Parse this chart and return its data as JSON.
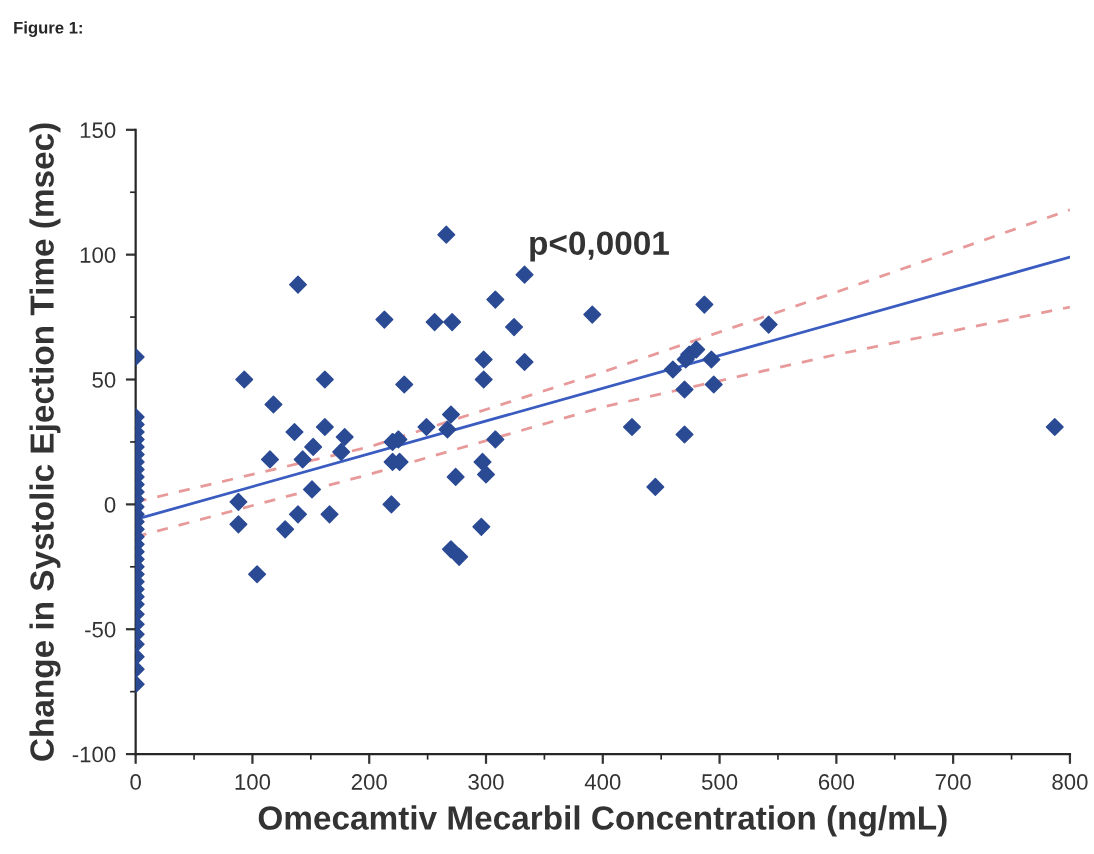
{
  "chart_data": {
    "type": "scatter",
    "xlabel": "Omecamtiv Mecarbil Concentration (ng/mL)",
    "ylabel": "Change in Systolic Ejection Time (msec)",
    "annotations": [
      "Figure 1:",
      "p<0,0001"
    ],
    "xlim": [
      0,
      800
    ],
    "xticks": [
      0,
      100,
      200,
      300,
      400,
      500,
      600,
      700,
      800
    ],
    "ylim": [
      -100,
      150
    ],
    "yticks": [
      -100,
      -50,
      0,
      50,
      100,
      150
    ],
    "grid": false,
    "legend": false,
    "marker": "diamond",
    "series": [
      {
        "color": "#2b4a94",
        "x": [
          0,
          0,
          0,
          0,
          0,
          0,
          0,
          0,
          0,
          0,
          0,
          0,
          0,
          0,
          0,
          0,
          0,
          0,
          0,
          0,
          0,
          0,
          0,
          0,
          0,
          0,
          0,
          0,
          0,
          0,
          0,
          0,
          0,
          0,
          93,
          88,
          88,
          104,
          118,
          115,
          128,
          136,
          139,
          139,
          143,
          152,
          151,
          162,
          162,
          166,
          176,
          179,
          213,
          220,
          220,
          226,
          219,
          225,
          230,
          249,
          256,
          266,
          271,
          270,
          267,
          274,
          270,
          277,
          296,
          298,
          298,
          297,
          300,
          308,
          308,
          324,
          333,
          333,
          391,
          487,
          542,
          474,
          480,
          471,
          460,
          493,
          470,
          495,
          425,
          470,
          445,
          787
        ],
        "values": [
          59,
          35,
          32,
          29,
          26,
          23,
          20,
          17,
          14,
          11,
          8,
          5,
          2,
          -1,
          -4,
          -7,
          -10,
          -13,
          -16,
          -19,
          -22,
          -25,
          -28,
          -31,
          -34,
          -37,
          -40,
          -44,
          -48,
          -52,
          -56,
          -61,
          -66,
          -72,
          50,
          1,
          -8,
          -28,
          40,
          18,
          -10,
          29,
          88,
          -4,
          18,
          23,
          6,
          50,
          31,
          -4,
          21,
          27,
          74,
          25,
          17,
          17,
          0,
          26,
          48,
          31,
          73,
          108,
          73,
          36,
          30,
          11,
          -18,
          -21,
          -9,
          58,
          50,
          17,
          12,
          26,
          82,
          71,
          57,
          92,
          76,
          80,
          72,
          60,
          62,
          58,
          54,
          58,
          46,
          48,
          31,
          28,
          7,
          31
        ]
      },
      {
        "type": "line",
        "color": "#3a5cc0",
        "line_style": "solid",
        "marker": "none",
        "x": [
          0,
          800
        ],
        "values": [
          -6,
          99
        ]
      },
      {
        "type": "line",
        "color": "#e89a9a",
        "line_style": "dashed",
        "marker": "none",
        "x": [
          0,
          200,
          400,
          600,
          800
        ],
        "values": [
          1,
          23,
          53,
          85,
          118
        ]
      },
      {
        "type": "line",
        "color": "#e89a9a",
        "line_style": "dashed",
        "marker": "none",
        "x": [
          0,
          200,
          400,
          600,
          800
        ],
        "values": [
          -13,
          12,
          39,
          60,
          79
        ]
      }
    ]
  }
}
